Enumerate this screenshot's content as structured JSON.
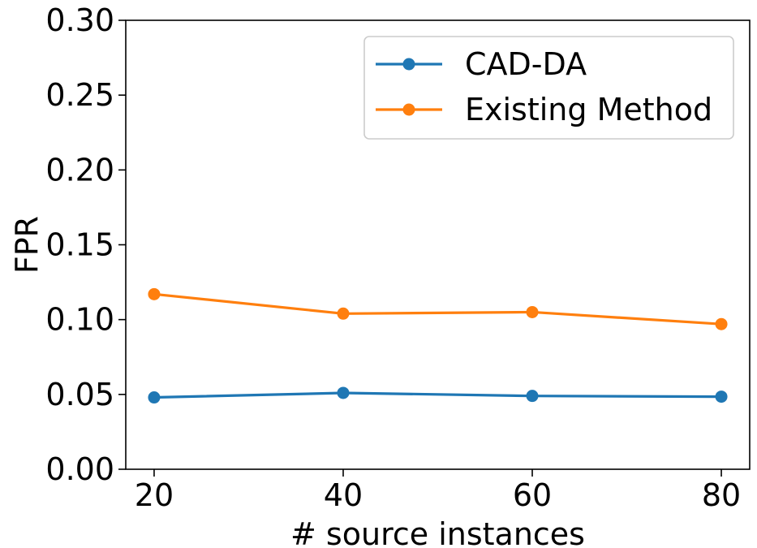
{
  "chart_data": {
    "type": "line",
    "title": "",
    "xlabel": "# source instances",
    "ylabel": "FPR",
    "x": [
      20,
      40,
      60,
      80
    ],
    "xlim": [
      17,
      83
    ],
    "ylim": [
      0.0,
      0.3
    ],
    "xticks": [
      20,
      40,
      60,
      80
    ],
    "xtick_labels": [
      "20",
      "40",
      "60",
      "80"
    ],
    "yticks": [
      0.0,
      0.05,
      0.1,
      0.15,
      0.2,
      0.25,
      0.3
    ],
    "ytick_labels": [
      "0.00",
      "0.05",
      "0.10",
      "0.15",
      "0.20",
      "0.25",
      "0.30"
    ],
    "grid": false,
    "legend_position": "top-right",
    "series": [
      {
        "name": "CAD-DA",
        "color": "#1f77b4",
        "values": [
          0.048,
          0.051,
          0.049,
          0.0485
        ]
      },
      {
        "name": "Existing Method",
        "color": "#ff7f0e",
        "values": [
          0.117,
          0.104,
          0.105,
          0.097
        ]
      }
    ]
  }
}
